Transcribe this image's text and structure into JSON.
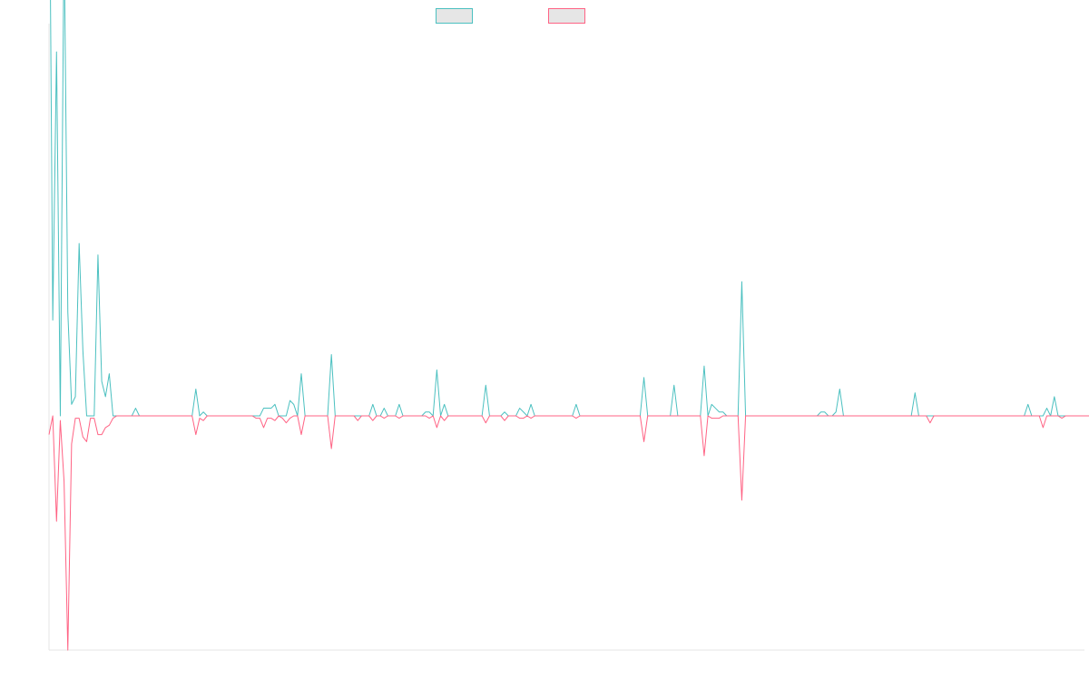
{
  "chart_data": {
    "type": "line",
    "title": "",
    "xlabel": "",
    "ylabel": "",
    "grid": false,
    "legend": {
      "position": "top-center",
      "entries": [
        {
          "series_index": 0,
          "label": ""
        },
        {
          "series_index": 1,
          "label": ""
        }
      ]
    },
    "ylim": [
      -100,
      100
    ],
    "colors": {
      "series_positive": "#4bc0c0",
      "series_negative": "#ff6384",
      "legend_fill": "#e6e6e6",
      "axis": "#e6e6e6"
    },
    "series": [
      {
        "color": "#4bc0c0",
        "values": [
          162,
          25,
          95,
          0,
          127,
          27,
          3,
          5,
          45,
          17,
          0,
          0,
          0,
          42,
          9,
          5,
          11,
          0,
          0,
          0,
          0,
          0,
          0,
          2,
          0,
          0,
          0,
          0,
          0,
          0,
          0,
          0,
          0,
          0,
          0,
          0,
          0,
          0,
          0,
          7,
          0,
          1,
          0,
          0,
          0,
          0,
          0,
          0,
          0,
          0,
          0,
          0,
          0,
          0,
          0,
          0,
          0,
          2,
          2,
          2,
          3,
          0,
          0,
          0,
          4,
          3,
          0,
          11,
          0,
          0,
          0,
          0,
          0,
          0,
          0,
          16,
          0,
          0,
          0,
          0,
          0,
          0,
          0,
          0,
          0,
          0,
          3,
          0,
          0,
          2,
          0,
          0,
          0,
          3,
          0,
          0,
          0,
          0,
          0,
          0,
          1,
          1,
          0,
          12,
          0,
          3,
          0,
          0,
          0,
          0,
          0,
          0,
          0,
          0,
          0,
          0,
          8,
          0,
          0,
          0,
          0,
          1,
          0,
          0,
          0,
          2,
          1,
          0,
          3,
          0,
          0,
          0,
          0,
          0,
          0,
          0,
          0,
          0,
          0,
          0,
          3,
          0,
          0,
          0,
          0,
          0,
          0,
          0,
          0,
          0,
          0,
          0,
          0,
          0,
          0,
          0,
          0,
          0,
          10,
          0,
          0,
          0,
          0,
          0,
          0,
          0,
          8,
          0,
          0,
          0,
          0,
          0,
          0,
          0,
          13,
          0,
          3,
          2,
          1,
          1,
          0,
          0,
          0,
          0,
          35,
          0,
          0,
          0,
          0,
          0,
          0,
          0,
          0,
          0,
          0,
          0,
          0,
          0,
          0,
          0,
          0,
          0,
          0,
          0,
          0,
          1,
          1,
          0,
          0,
          1,
          7,
          0,
          0,
          0,
          0,
          0,
          0,
          0,
          0,
          0,
          0,
          0,
          0,
          0,
          0,
          0,
          0,
          0,
          0,
          0,
          6,
          0,
          0,
          0,
          0,
          0,
          0,
          0,
          0,
          0,
          0,
          0,
          0,
          0,
          0,
          0,
          0,
          0,
          0,
          0,
          0,
          0,
          0,
          0,
          0,
          0,
          0,
          0,
          0,
          0,
          3,
          0,
          0,
          0,
          0,
          2,
          0,
          5,
          0,
          0,
          0,
          0,
          0,
          0,
          0,
          0
        ]
      },
      {
        "color": "#ff6384",
        "values": [
          -8,
          0,
          -45,
          -2,
          -28,
          -100,
          -12,
          -1,
          -1,
          -9,
          -11,
          -1,
          -1,
          -8,
          -8,
          -5,
          -4,
          -1,
          0,
          0,
          0,
          0,
          0,
          0,
          0,
          0,
          0,
          0,
          0,
          0,
          0,
          0,
          0,
          0,
          0,
          0,
          0,
          0,
          0,
          -8,
          -1,
          -2,
          0,
          0,
          0,
          0,
          0,
          0,
          0,
          0,
          0,
          0,
          0,
          0,
          0,
          -1,
          -1,
          -5,
          -1,
          -1,
          -2,
          0,
          -1,
          -3,
          -1,
          0,
          0,
          -8,
          0,
          0,
          0,
          0,
          0,
          0,
          0,
          -14,
          0,
          0,
          0,
          0,
          0,
          0,
          -2,
          0,
          0,
          0,
          -2,
          0,
          0,
          -1,
          0,
          0,
          0,
          -1,
          0,
          0,
          0,
          0,
          0,
          0,
          0,
          -1,
          0,
          -5,
          0,
          -2,
          0,
          0,
          0,
          0,
          0,
          0,
          0,
          0,
          0,
          0,
          -3,
          0,
          0,
          0,
          0,
          -2,
          0,
          0,
          0,
          -1,
          -1,
          0,
          -1,
          0,
          0,
          0,
          0,
          0,
          0,
          0,
          0,
          0,
          0,
          0,
          -1,
          0,
          0,
          0,
          0,
          0,
          0,
          0,
          0,
          0,
          0,
          0,
          0,
          0,
          0,
          0,
          0,
          0,
          -11,
          0,
          0,
          0,
          0,
          0,
          0,
          0,
          0,
          0,
          0,
          0,
          0,
          0,
          0,
          0,
          -17,
          0,
          -1,
          -1,
          -1,
          0,
          0,
          0,
          0,
          0,
          -36,
          0,
          0,
          0,
          0,
          0,
          0,
          0,
          0,
          0,
          0,
          0,
          0,
          0,
          0,
          0,
          0,
          0,
          0,
          0,
          0,
          0,
          0,
          0,
          0,
          0,
          0,
          0,
          0,
          0,
          0,
          0,
          0,
          0,
          0,
          0,
          0,
          0,
          0,
          0,
          0,
          0,
          0,
          0,
          0,
          0,
          0,
          0,
          0,
          0,
          -3,
          0,
          0,
          0,
          0,
          0,
          0,
          0,
          0,
          0,
          0,
          0,
          0,
          0,
          0,
          0,
          0,
          0,
          0,
          0,
          0,
          0,
          0,
          0,
          0,
          0,
          0,
          0,
          0,
          0,
          -5,
          0,
          0,
          0,
          0,
          -1,
          0,
          0,
          0,
          0,
          0,
          0,
          0,
          0,
          0,
          0
        ]
      }
    ]
  }
}
